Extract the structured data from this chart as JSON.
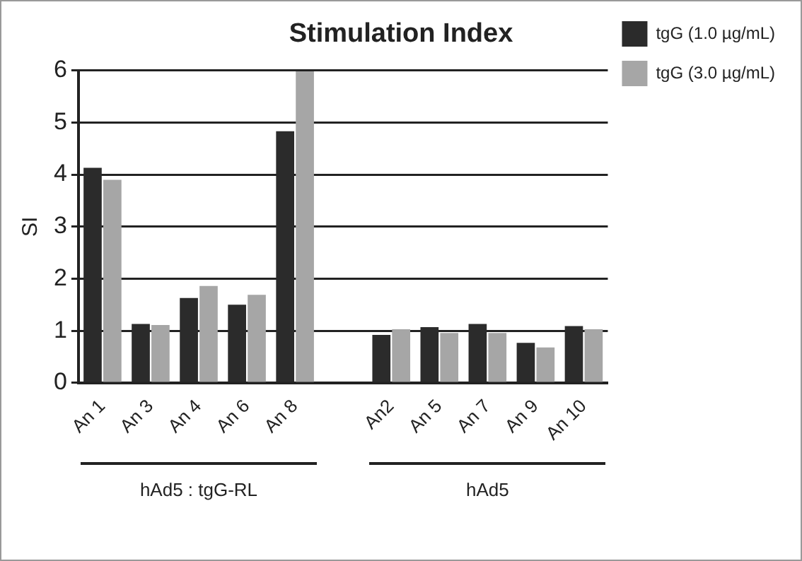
{
  "chart_data": {
    "type": "bar",
    "title": "Stimulation Index",
    "ylabel": "SI",
    "categories": [
      "An 1",
      "An 3",
      "An 4",
      "An 6",
      "An 8",
      null,
      "An2",
      "An 5",
      "An 7",
      "An 9",
      "An 10"
    ],
    "series": [
      {
        "name": "tgG (1.0 µg/mL)",
        "color": "#2b2b2b",
        "values": [
          4.13,
          1.13,
          1.63,
          1.5,
          4.83,
          null,
          0.92,
          1.07,
          1.13,
          0.77,
          1.09
        ]
      },
      {
        "name": "tgG (3.0 µg/mL)",
        "color": "#a6a6a6",
        "values": [
          3.9,
          1.11,
          1.86,
          1.69,
          5.98,
          null,
          1.03,
          0.96,
          0.96,
          0.68,
          1.03
        ]
      }
    ],
    "ylim": [
      0,
      6
    ],
    "yticks": [
      0,
      1,
      2,
      3,
      4,
      5,
      6
    ],
    "grid": "y",
    "legend": "top right",
    "annotations": [
      "hAd5 : tgG-RL",
      "hAd5"
    ]
  }
}
